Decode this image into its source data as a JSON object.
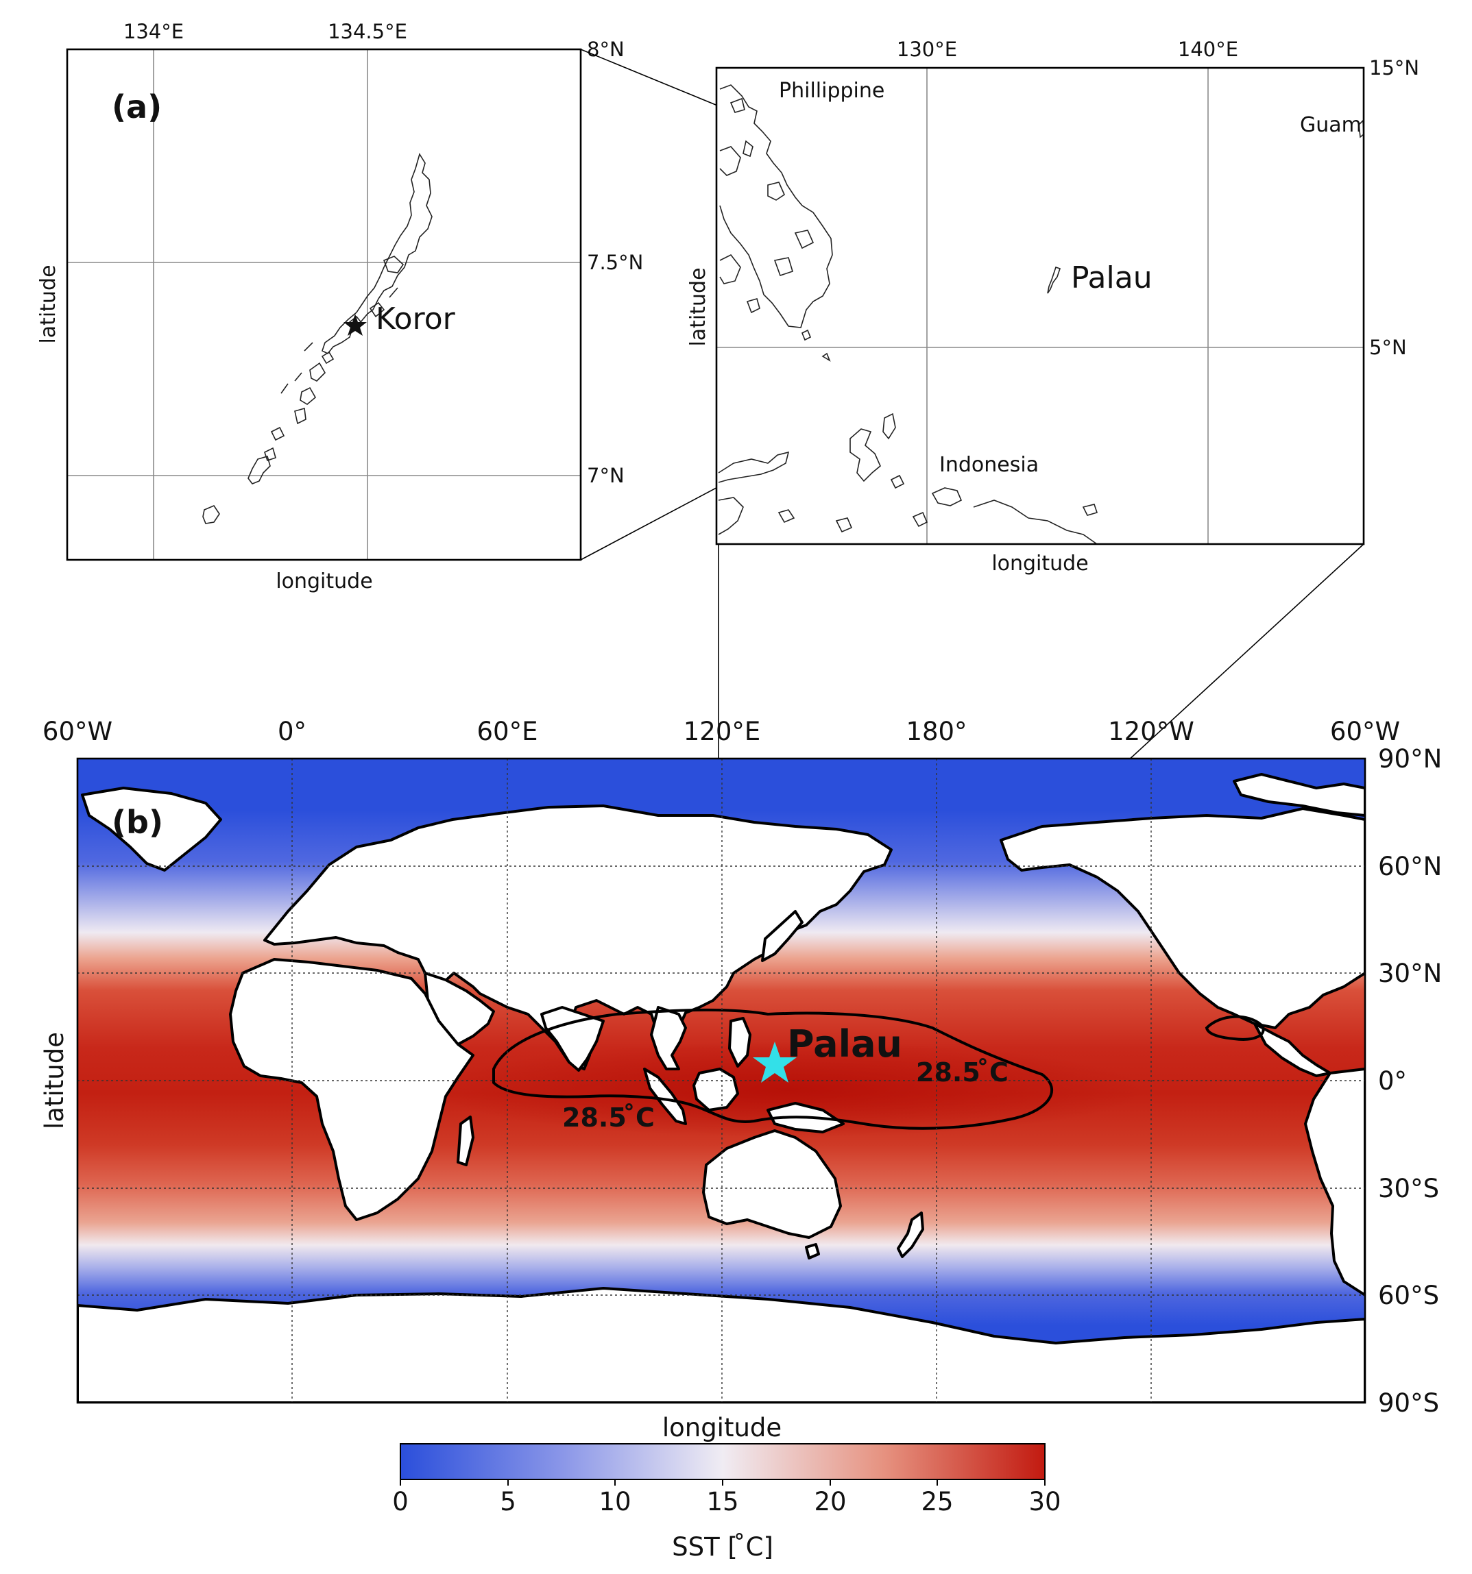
{
  "panel_a": {
    "label": "(a)",
    "x_ticks": [
      "134°E",
      "134.5°E"
    ],
    "y_ticks": [
      "8°N",
      "7.5°N",
      "7°N"
    ],
    "xlabel": "longitude",
    "ylabel": "latitude",
    "place_label": "Koror",
    "extent": {
      "lon": [
        133.8,
        135.0
      ],
      "lat": [
        6.8,
        8.0
      ]
    }
  },
  "panel_region": {
    "x_ticks": [
      "130°E",
      "140°E"
    ],
    "y_ticks": [
      "15°N",
      "5°N"
    ],
    "xlabel": "longitude",
    "ylabel": "latitude",
    "places": {
      "philippine": "Phillippine",
      "guam": "Guam",
      "palau": "Palau",
      "indonesia": "Indonesia"
    },
    "extent": {
      "lon": [
        122.3,
        145.3
      ],
      "lat": [
        -2.0,
        15.0
      ]
    }
  },
  "panel_b": {
    "label": "(b)",
    "x_ticks": [
      "60°W",
      "0°",
      "60°E",
      "120°E",
      "180°",
      "120°W",
      "60°W"
    ],
    "y_ticks": [
      "90°N",
      "60°N",
      "30°N",
      "0°",
      "30°S",
      "60°S",
      "90°S"
    ],
    "xlabel": "longitude",
    "ylabel": "latitude",
    "palau_label": "Palau",
    "palau_marker_color": "#33e0e8",
    "contour_label": "28.5$^\\circ$C",
    "contour_label_text": "28.5 ̊C",
    "extent": {
      "lon": [
        -60,
        300
      ],
      "lat": [
        -90,
        90
      ]
    }
  },
  "colorbar": {
    "label": "SST [ ̊C]",
    "ticks": [
      "0",
      "5",
      "10",
      "15",
      "20",
      "25",
      "30"
    ],
    "range": [
      0,
      30
    ],
    "colors": [
      "#2b4fdb",
      "#8a96e8",
      "#f0ecf3",
      "#e69280",
      "#c21a10"
    ],
    "colormap": "coolwarm"
  }
}
